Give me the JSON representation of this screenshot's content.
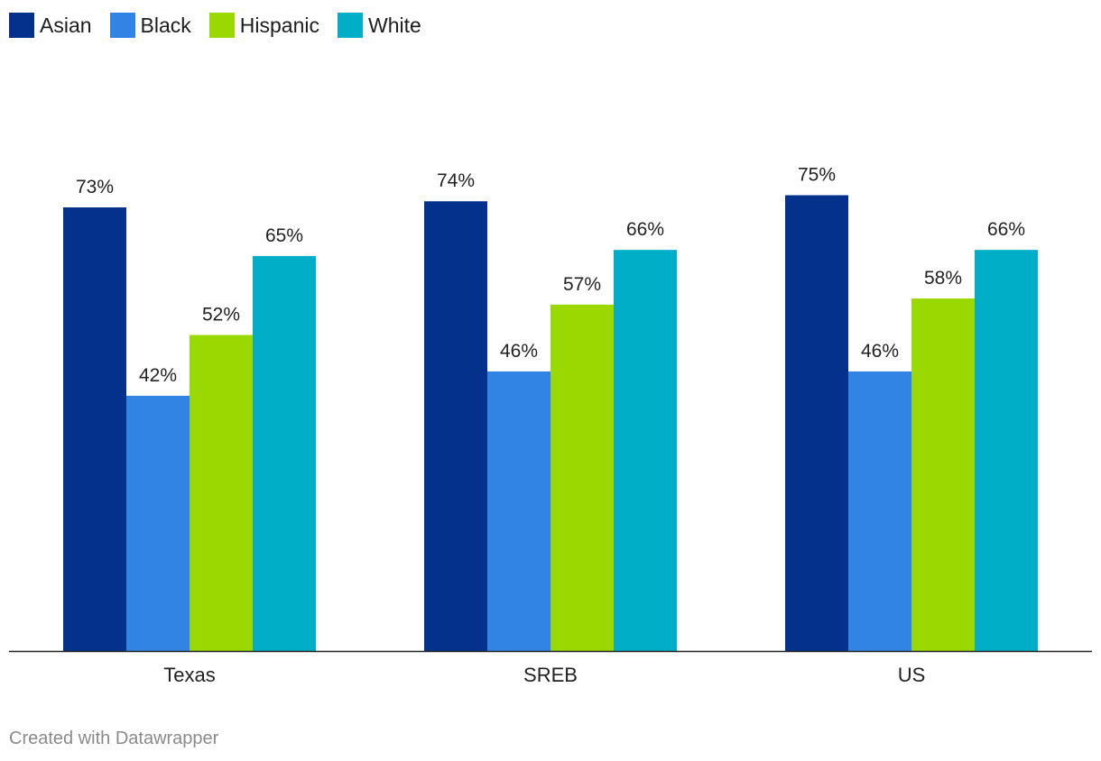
{
  "chart_data": {
    "type": "bar",
    "categories": [
      "Texas",
      "SREB",
      "US"
    ],
    "series": [
      {
        "name": "Asian",
        "color": "#03318c",
        "values": [
          73,
          74,
          75
        ]
      },
      {
        "name": "Black",
        "color": "#3183e4",
        "values": [
          42,
          46,
          46
        ]
      },
      {
        "name": "Hispanic",
        "color": "#99d801",
        "values": [
          52,
          57,
          58
        ]
      },
      {
        "name": "White",
        "color": "#00aec7",
        "values": [
          65,
          66,
          66
        ]
      }
    ],
    "value_suffix": "%",
    "ylim": [
      0,
      100
    ],
    "grid": false,
    "legend_position": "top-left",
    "footer": "Created with Datawrapper"
  }
}
